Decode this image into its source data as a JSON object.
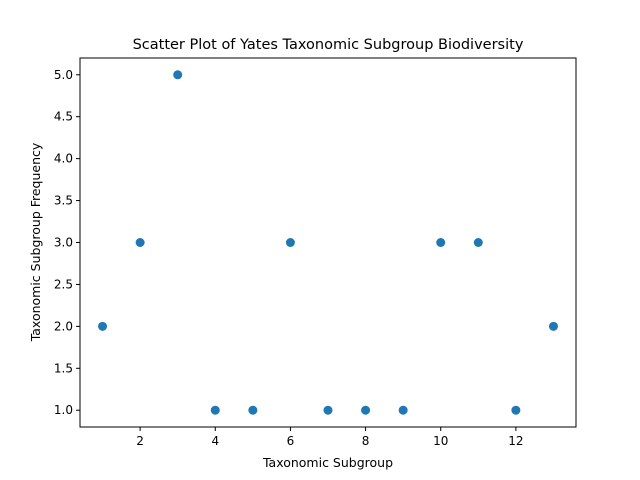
{
  "chart_data": {
    "type": "scatter",
    "title": "Scatter Plot of Yates Taxonomic Subgroup Biodiversity",
    "xlabel": "Taxonomic Subgroup",
    "ylabel": "Taxonomic Subgroup Frequency",
    "x": [
      1,
      2,
      3,
      4,
      5,
      6,
      7,
      8,
      9,
      10,
      11,
      12,
      13
    ],
    "y": [
      2.0,
      3.0,
      5.0,
      1.0,
      1.0,
      3.0,
      1.0,
      1.0,
      1.0,
      3.0,
      3.0,
      1.0,
      2.0
    ],
    "xlim": [
      0.4,
      13.6
    ],
    "ylim": [
      0.8,
      5.2
    ],
    "xticks": [
      2,
      4,
      6,
      8,
      10,
      12
    ],
    "xtick_labels": [
      "2",
      "4",
      "6",
      "8",
      "10",
      "12"
    ],
    "yticks": [
      1.0,
      1.5,
      2.0,
      2.5,
      3.0,
      3.5,
      4.0,
      4.5,
      5.0
    ],
    "ytick_labels": [
      "1.0",
      "1.5",
      "2.0",
      "2.5",
      "3.0",
      "3.5",
      "4.0",
      "4.5",
      "5.0"
    ],
    "marker_color": "#1f77b4",
    "grid": false,
    "legend": false
  }
}
